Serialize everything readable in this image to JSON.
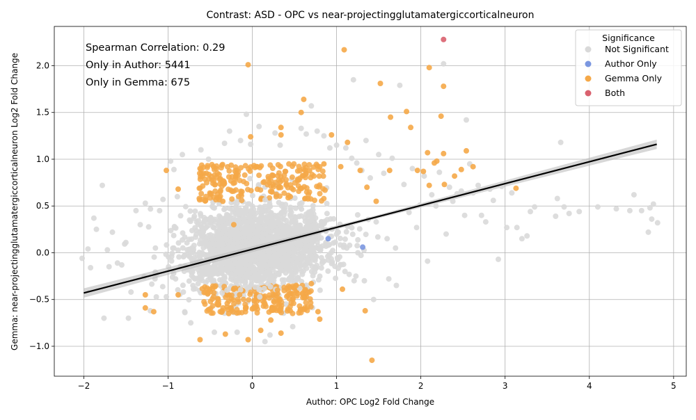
{
  "chart_data": {
    "type": "scatter",
    "title": "Contrast: ASD - OPC vs near-projectingglutamatergiccorticalneuron",
    "xlabel": "Author: OPC Log2 Fold Change",
    "ylabel": "Gemma: near-projectingglutamatergiccorticalneuron Log2 Fold Change",
    "xlim": [
      -2.35,
      5.15
    ],
    "ylim": [
      -1.32,
      2.42
    ],
    "xticks": [
      -2,
      -1,
      0,
      1,
      2,
      3,
      4,
      5
    ],
    "xtick_labels": [
      "−2",
      "−1",
      "0",
      "1",
      "2",
      "3",
      "4",
      "5"
    ],
    "yticks": [
      -1.0,
      -0.5,
      0.0,
      0.5,
      1.0,
      1.5,
      2.0
    ],
    "ytick_labels": [
      "−1.0",
      "−0.5",
      "0.0",
      "0.5",
      "1.0",
      "1.5",
      "2.0"
    ],
    "grid": true,
    "legend_position": "top-right",
    "legend_title": "Significance",
    "annotations": [
      "Spearman Correlation: 0.29",
      "Only in Author: 5441",
      "Only in Gemma: 675"
    ],
    "regression_line": {
      "x": [
        -2.0,
        4.8
      ],
      "y": [
        -0.43,
        1.16
      ],
      "ci_halfwidth_at_ends": 0.05
    },
    "series": [
      {
        "name": "Not Significant",
        "color": "#d9d9d9",
        "points": [
          [
            -2.02,
            -0.06
          ],
          [
            -1.95,
            0.04
          ],
          [
            -1.92,
            -0.16
          ],
          [
            -1.88,
            0.37
          ],
          [
            -1.85,
            0.25
          ],
          [
            -1.78,
            0.72
          ],
          [
            -1.76,
            -0.7
          ],
          [
            -1.72,
            0.03
          ],
          [
            -1.7,
            -0.15
          ],
          [
            -1.66,
            0.22
          ],
          [
            -1.6,
            -0.11
          ],
          [
            -1.55,
            -0.13
          ],
          [
            -1.5,
            0.11
          ],
          [
            -1.47,
            -0.7
          ],
          [
            -1.44,
            -0.42
          ],
          [
            -1.38,
            0.45
          ],
          [
            -1.33,
            0.3
          ],
          [
            -1.27,
            0.53
          ],
          [
            -1.21,
            -0.62
          ],
          [
            -1.15,
            0.05
          ],
          [
            -1.1,
            0.45
          ],
          [
            -1.06,
            0.57
          ],
          [
            -1.02,
            -0.47
          ],
          [
            -0.97,
            0.98
          ],
          [
            -0.93,
            0.89
          ],
          [
            -0.89,
            0.6
          ],
          [
            -0.83,
            1.05
          ],
          [
            -0.8,
            -0.64
          ],
          [
            -0.73,
            -0.75
          ],
          [
            -0.61,
            1.1
          ],
          [
            -0.52,
            1.0
          ],
          [
            -0.45,
            -0.85
          ],
          [
            -0.33,
            1.17
          ],
          [
            -0.27,
            1.3
          ],
          [
            -0.18,
            -0.85
          ],
          [
            -0.14,
            1.2
          ],
          [
            -0.07,
            1.48
          ],
          [
            -0.02,
            1.16
          ],
          [
            0.08,
            1.35
          ],
          [
            0.15,
            -0.95
          ],
          [
            0.21,
            -0.88
          ],
          [
            0.27,
            1.28
          ],
          [
            0.33,
            1.15
          ],
          [
            0.48,
            -0.79
          ],
          [
            0.58,
            1.33
          ],
          [
            0.64,
            1.27
          ],
          [
            0.7,
            1.57
          ],
          [
            0.77,
            1.3
          ],
          [
            0.85,
            1.25
          ],
          [
            0.92,
            1.12
          ],
          [
            1.0,
            1.15
          ],
          [
            1.11,
            1.12
          ],
          [
            1.18,
            1.01
          ],
          [
            1.2,
            1.85
          ],
          [
            1.24,
            0.96
          ],
          [
            1.3,
            0.88
          ],
          [
            1.35,
            1.2
          ],
          [
            1.4,
            0.8
          ],
          [
            1.44,
            -0.5
          ],
          [
            1.5,
            1.05
          ],
          [
            1.56,
            0.85
          ],
          [
            1.62,
            -0.28
          ],
          [
            1.66,
            1.01
          ],
          [
            1.71,
            -0.35
          ],
          [
            1.75,
            1.79
          ],
          [
            1.8,
            0.73
          ],
          [
            1.86,
            0.43
          ],
          [
            1.9,
            0.9
          ],
          [
            1.95,
            0.27
          ],
          [
            1.99,
            0.51
          ],
          [
            2.04,
            0.82
          ],
          [
            2.08,
            -0.09
          ],
          [
            2.13,
            0.62
          ],
          [
            2.18,
            0.5
          ],
          [
            2.22,
            0.86
          ],
          [
            2.27,
            2.02
          ],
          [
            2.3,
            0.2
          ],
          [
            2.34,
            0.7
          ],
          [
            2.38,
            0.55
          ],
          [
            2.43,
            0.63
          ],
          [
            2.48,
            0.66
          ],
          [
            2.52,
            0.4
          ],
          [
            2.54,
            1.42
          ],
          [
            2.58,
            0.95
          ],
          [
            2.62,
            0.64
          ],
          [
            2.68,
            0.72
          ],
          [
            2.72,
            0.4
          ],
          [
            2.77,
            0.33
          ],
          [
            2.82,
            0.68
          ],
          [
            2.86,
            0.56
          ],
          [
            2.92,
            -0.07
          ],
          [
            2.96,
            0.71
          ],
          [
            3.02,
            0.27
          ],
          [
            3.08,
            0.64
          ],
          [
            3.14,
            0.27
          ],
          [
            3.2,
            0.15
          ],
          [
            3.26,
            0.18
          ],
          [
            3.3,
            0.44
          ],
          [
            3.35,
            0.49
          ],
          [
            3.6,
            0.39
          ],
          [
            3.62,
            0.58
          ],
          [
            3.66,
            1.18
          ],
          [
            3.7,
            0.49
          ],
          [
            3.76,
            0.42
          ],
          [
            3.88,
            0.44
          ],
          [
            4.1,
            0.49
          ],
          [
            4.32,
            0.47
          ],
          [
            4.48,
            0.45
          ],
          [
            4.53,
            0.62
          ],
          [
            4.62,
            0.45
          ],
          [
            4.7,
            0.22
          ],
          [
            4.72,
            0.48
          ],
          [
            4.74,
            0.36
          ],
          [
            4.76,
            0.52
          ],
          [
            4.81,
            0.32
          ],
          [
            1.23,
            -0.25
          ],
          [
            1.33,
            -0.3
          ],
          [
            1.47,
            0.33
          ],
          [
            1.6,
            0.15
          ],
          [
            1.7,
            0.05
          ],
          [
            0.95,
            -0.1
          ],
          [
            1.1,
            -0.2
          ],
          [
            -0.3,
            0.2
          ]
        ]
      },
      {
        "name": "Author Only",
        "color": "#7b97e0",
        "points": [
          [
            0.9,
            0.15
          ],
          [
            1.31,
            0.06
          ]
        ]
      },
      {
        "name": "Gemma Only",
        "color": "#f5a848",
        "points": [
          [
            1.09,
            2.17
          ],
          [
            -0.05,
            2.01
          ],
          [
            2.1,
            1.98
          ],
          [
            1.52,
            1.81
          ],
          [
            2.27,
            1.78
          ],
          [
            0.61,
            1.64
          ],
          [
            0.58,
            1.5
          ],
          [
            1.83,
            1.51
          ],
          [
            1.64,
            1.45
          ],
          [
            1.88,
            1.34
          ],
          [
            2.24,
            1.46
          ],
          [
            0.34,
            1.34
          ],
          [
            0.94,
            1.26
          ],
          [
            0.34,
            1.26
          ],
          [
            -0.02,
            1.24
          ],
          [
            1.13,
            1.18
          ],
          [
            2.54,
            1.09
          ],
          [
            2.27,
            1.06
          ],
          [
            2.62,
            0.92
          ],
          [
            2.08,
            1.07
          ],
          [
            1.63,
            0.88
          ],
          [
            1.96,
            0.88
          ],
          [
            2.19,
            0.98
          ],
          [
            2.16,
            0.96
          ],
          [
            2.48,
            0.89
          ],
          [
            2.4,
            0.82
          ],
          [
            2.28,
            0.73
          ],
          [
            2.03,
            0.87
          ],
          [
            2.1,
            0.72
          ],
          [
            3.13,
            0.69
          ],
          [
            -1.02,
            0.88
          ],
          [
            -0.88,
            0.68
          ],
          [
            -0.62,
            0.9
          ],
          [
            -0.46,
            0.92
          ],
          [
            -0.35,
            0.55
          ],
          [
            -0.22,
            0.3
          ],
          [
            0.05,
            0.92
          ],
          [
            0.2,
            0.75
          ],
          [
            0.45,
            0.6
          ],
          [
            0.68,
            0.88
          ],
          [
            0.85,
            0.95
          ],
          [
            1.05,
            0.92
          ],
          [
            1.28,
            0.88
          ],
          [
            1.36,
            0.7
          ],
          [
            1.47,
            0.55
          ],
          [
            -1.27,
            -0.45
          ],
          [
            -1.17,
            -0.63
          ],
          [
            -1.27,
            -0.59
          ],
          [
            -0.88,
            -0.45
          ],
          [
            -0.62,
            -0.93
          ],
          [
            -0.32,
            -0.87
          ],
          [
            -0.05,
            -0.93
          ],
          [
            0.1,
            -0.83
          ],
          [
            0.34,
            -0.86
          ],
          [
            0.78,
            -0.63
          ],
          [
            0.8,
            -0.71
          ],
          [
            1.07,
            -0.39
          ],
          [
            1.34,
            -0.62
          ],
          [
            1.42,
            -1.15
          ],
          [
            -0.5,
            -0.6
          ],
          [
            -0.4,
            -0.55
          ],
          [
            -0.28,
            -0.65
          ],
          [
            -0.15,
            -0.45
          ],
          [
            0.0,
            -0.6
          ],
          [
            0.15,
            -0.55
          ],
          [
            0.3,
            -0.4
          ],
          [
            0.45,
            -0.62
          ],
          [
            0.6,
            -0.48
          ],
          [
            0.7,
            -0.33
          ],
          [
            -0.2,
            -0.38
          ],
          [
            0.22,
            -0.72
          ],
          [
            0.52,
            -0.35
          ]
        ]
      },
      {
        "name": "Both",
        "color": "#d9616e",
        "points": [
          [
            2.27,
            2.28
          ]
        ]
      }
    ]
  }
}
